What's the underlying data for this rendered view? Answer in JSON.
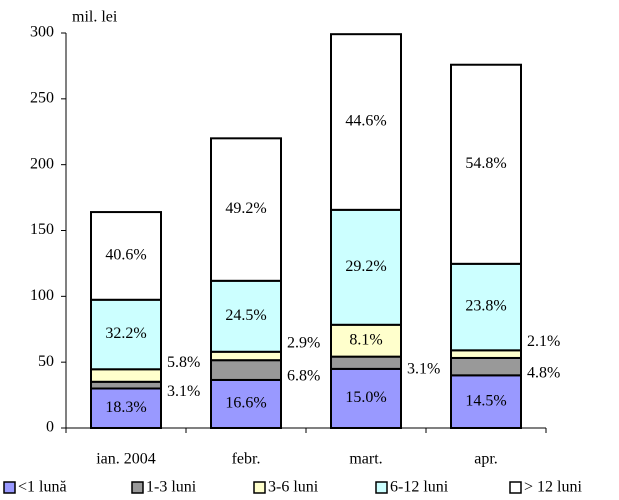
{
  "chart_data": {
    "type": "stacked_bar",
    "y_axis_label": "mil. lei",
    "categories": [
      "ian. 2004",
      "febr.",
      "mart.",
      "apr."
    ],
    "series": [
      {
        "name": "<1 lună",
        "color": "#9999ff",
        "values": [
          30,
          36.5,
          44.9,
          40
        ],
        "value_labels": [
          "18.3%",
          "16.6%",
          "15.0%",
          "14.5%"
        ]
      },
      {
        "name": "1-3 luni",
        "color": "#999999",
        "values": [
          5.1,
          15,
          9.3,
          13.2
        ],
        "value_labels": [
          "3.1%",
          "6.8%",
          "3.1%",
          "4.8%"
        ]
      },
      {
        "name": "3-6 luni",
        "color": "#ffffcc",
        "values": [
          9.5,
          6.4,
          24.2,
          5.8
        ],
        "value_labels": [
          "5.8%",
          "2.9%",
          "8.1%",
          "2.1%"
        ]
      },
      {
        "name": "6-12 luni",
        "color": "#ccffff",
        "values": [
          52.8,
          53.9,
          87.3,
          65.7
        ],
        "value_labels": [
          "32.2%",
          "24.5%",
          "29.2%",
          "23.8%"
        ]
      },
      {
        "name": "> 12 luni",
        "color": "#ffffff",
        "values": [
          66.6,
          108.2,
          133.4,
          151.2
        ],
        "value_labels": [
          "40.6%",
          "49.2%",
          "44.6%",
          "54.8%"
        ]
      }
    ],
    "ylim": [
      0,
      300
    ],
    "yticks": [
      0,
      50,
      100,
      150,
      200,
      250,
      300
    ]
  }
}
